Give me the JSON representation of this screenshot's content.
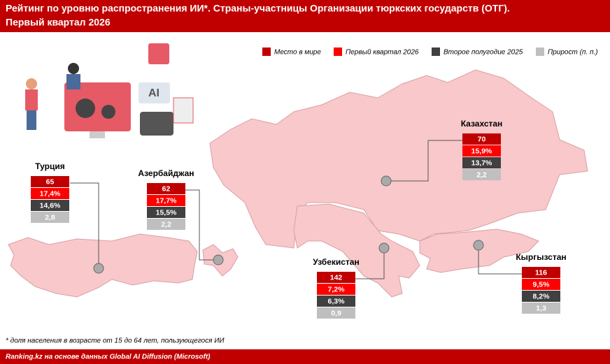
{
  "header": {
    "title": [
      "Рейтинг по уровню распространения ИИ*. Страны-участницы Организации тюркских государств (ОТГ).",
      "Первый квартал 2026"
    ]
  },
  "legend": [
    {
      "label": "Место в мире",
      "color": "#c00000"
    },
    {
      "label": "Первый квартал 2026",
      "color": "#ff0000"
    },
    {
      "label": "Второе полугодие 2025",
      "color": "#404040"
    },
    {
      "label": "Прирост (п. п.)",
      "color": "#bfbfbf"
    }
  ],
  "countries": [
    {
      "name": "Турция",
      "values": [
        "65",
        "17,4%",
        "14,6%",
        "2,8"
      ]
    },
    {
      "name": "Азербайджан",
      "values": [
        "62",
        "17,7%",
        "15,5%",
        "2,2"
      ]
    },
    {
      "name": "Казахстан",
      "values": [
        "70",
        "15,9%",
        "13,7%",
        "2,2"
      ]
    },
    {
      "name": "Узбекистан",
      "values": [
        "142",
        "7,2%",
        "6,3%",
        "0,9"
      ]
    },
    {
      "name": "Кыргызстан",
      "values": [
        "116",
        "9,5%",
        "8,2%",
        "1,3"
      ]
    }
  ],
  "footnote": "* доля населения в возрасте от 15 до 64 лет, пользующегося ИИ",
  "source": "Ranking.kz на основе данных Global AI Diffusion (Microsoft)"
}
